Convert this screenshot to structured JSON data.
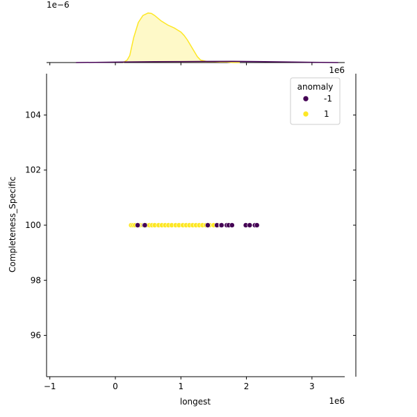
{
  "chart_data": {
    "type": "scatter",
    "xlabel": "longest",
    "ylabel": "Completeness_Specific",
    "x_offset_label": "1e6",
    "top_offset_label": "1e−6",
    "right_offset_label": "1e6",
    "xlim": [
      -1.05,
      3.5
    ],
    "ylim": [
      94.5,
      105.5
    ],
    "x_ticks": [
      -1,
      0,
      1,
      2,
      3
    ],
    "x_tick_labels": [
      "−1",
      "0",
      "1",
      "2",
      "3"
    ],
    "y_ticks": [
      96,
      98,
      100,
      102,
      104
    ],
    "y_tick_labels": [
      "96",
      "98",
      "100",
      "102",
      "104"
    ],
    "legend": {
      "title": "anomaly",
      "position": "top-right",
      "entries": [
        {
          "label": "-1",
          "color": "#440154"
        },
        {
          "label": "1",
          "color": "#fde725"
        }
      ]
    },
    "series": [
      {
        "name": "1",
        "color": "#fde725",
        "x": [
          0.24,
          0.27,
          0.3,
          0.37,
          0.42,
          0.47,
          0.52,
          0.56,
          0.6,
          0.66,
          0.71,
          0.76,
          0.81,
          0.86,
          0.92,
          0.97,
          1.03,
          1.08,
          1.13,
          1.18,
          1.23,
          1.28,
          1.33,
          1.38,
          1.44,
          1.5,
          1.58
        ],
        "y": [
          100,
          100,
          100,
          100,
          100,
          100,
          100,
          100,
          100,
          100,
          100,
          100,
          100,
          100,
          100,
          100,
          100,
          100,
          100,
          100,
          100,
          100,
          100,
          100,
          100,
          100,
          100
        ]
      },
      {
        "name": "-1",
        "color": "#440154",
        "x": [
          0.34,
          0.44,
          0.45,
          1.41,
          1.55,
          1.61,
          1.62,
          1.7,
          1.73,
          1.78,
          1.99,
          2.05,
          2.13,
          2.16
        ],
        "y": [
          100,
          100,
          100,
          100,
          100,
          100,
          100,
          100,
          100,
          100,
          100,
          100,
          100,
          100
        ]
      }
    ],
    "marginal_top": {
      "type": "kde",
      "series": [
        {
          "name": "1",
          "color": "#fde725",
          "x": [
            0.12,
            0.18,
            0.22,
            0.28,
            0.35,
            0.42,
            0.5,
            0.55,
            0.6,
            0.7,
            0.8,
            0.9,
            1.0,
            1.05,
            1.1,
            1.15,
            1.2,
            1.25,
            1.3,
            1.4,
            1.5,
            1.6,
            1.7,
            1.8,
            1.9
          ],
          "density": [
            0.0,
            0.05,
            0.14,
            0.5,
            0.8,
            0.94,
            0.99,
            0.98,
            0.94,
            0.83,
            0.75,
            0.69,
            0.61,
            0.54,
            0.45,
            0.34,
            0.23,
            0.12,
            0.05,
            0.02,
            0.02,
            0.01,
            0.01,
            0.0,
            0.0
          ]
        },
        {
          "name": "-1",
          "color": "#440154",
          "x": [
            -0.6,
            -0.2,
            0.2,
            0.6,
            1.0,
            1.4,
            1.8,
            2.2,
            2.6,
            3.0,
            3.4
          ],
          "density": [
            0.0,
            0.005,
            0.012,
            0.018,
            0.02,
            0.022,
            0.023,
            0.02,
            0.013,
            0.006,
            0.0
          ]
        }
      ]
    },
    "marginal_right": {
      "type": "kde",
      "note_free": true
    }
  }
}
